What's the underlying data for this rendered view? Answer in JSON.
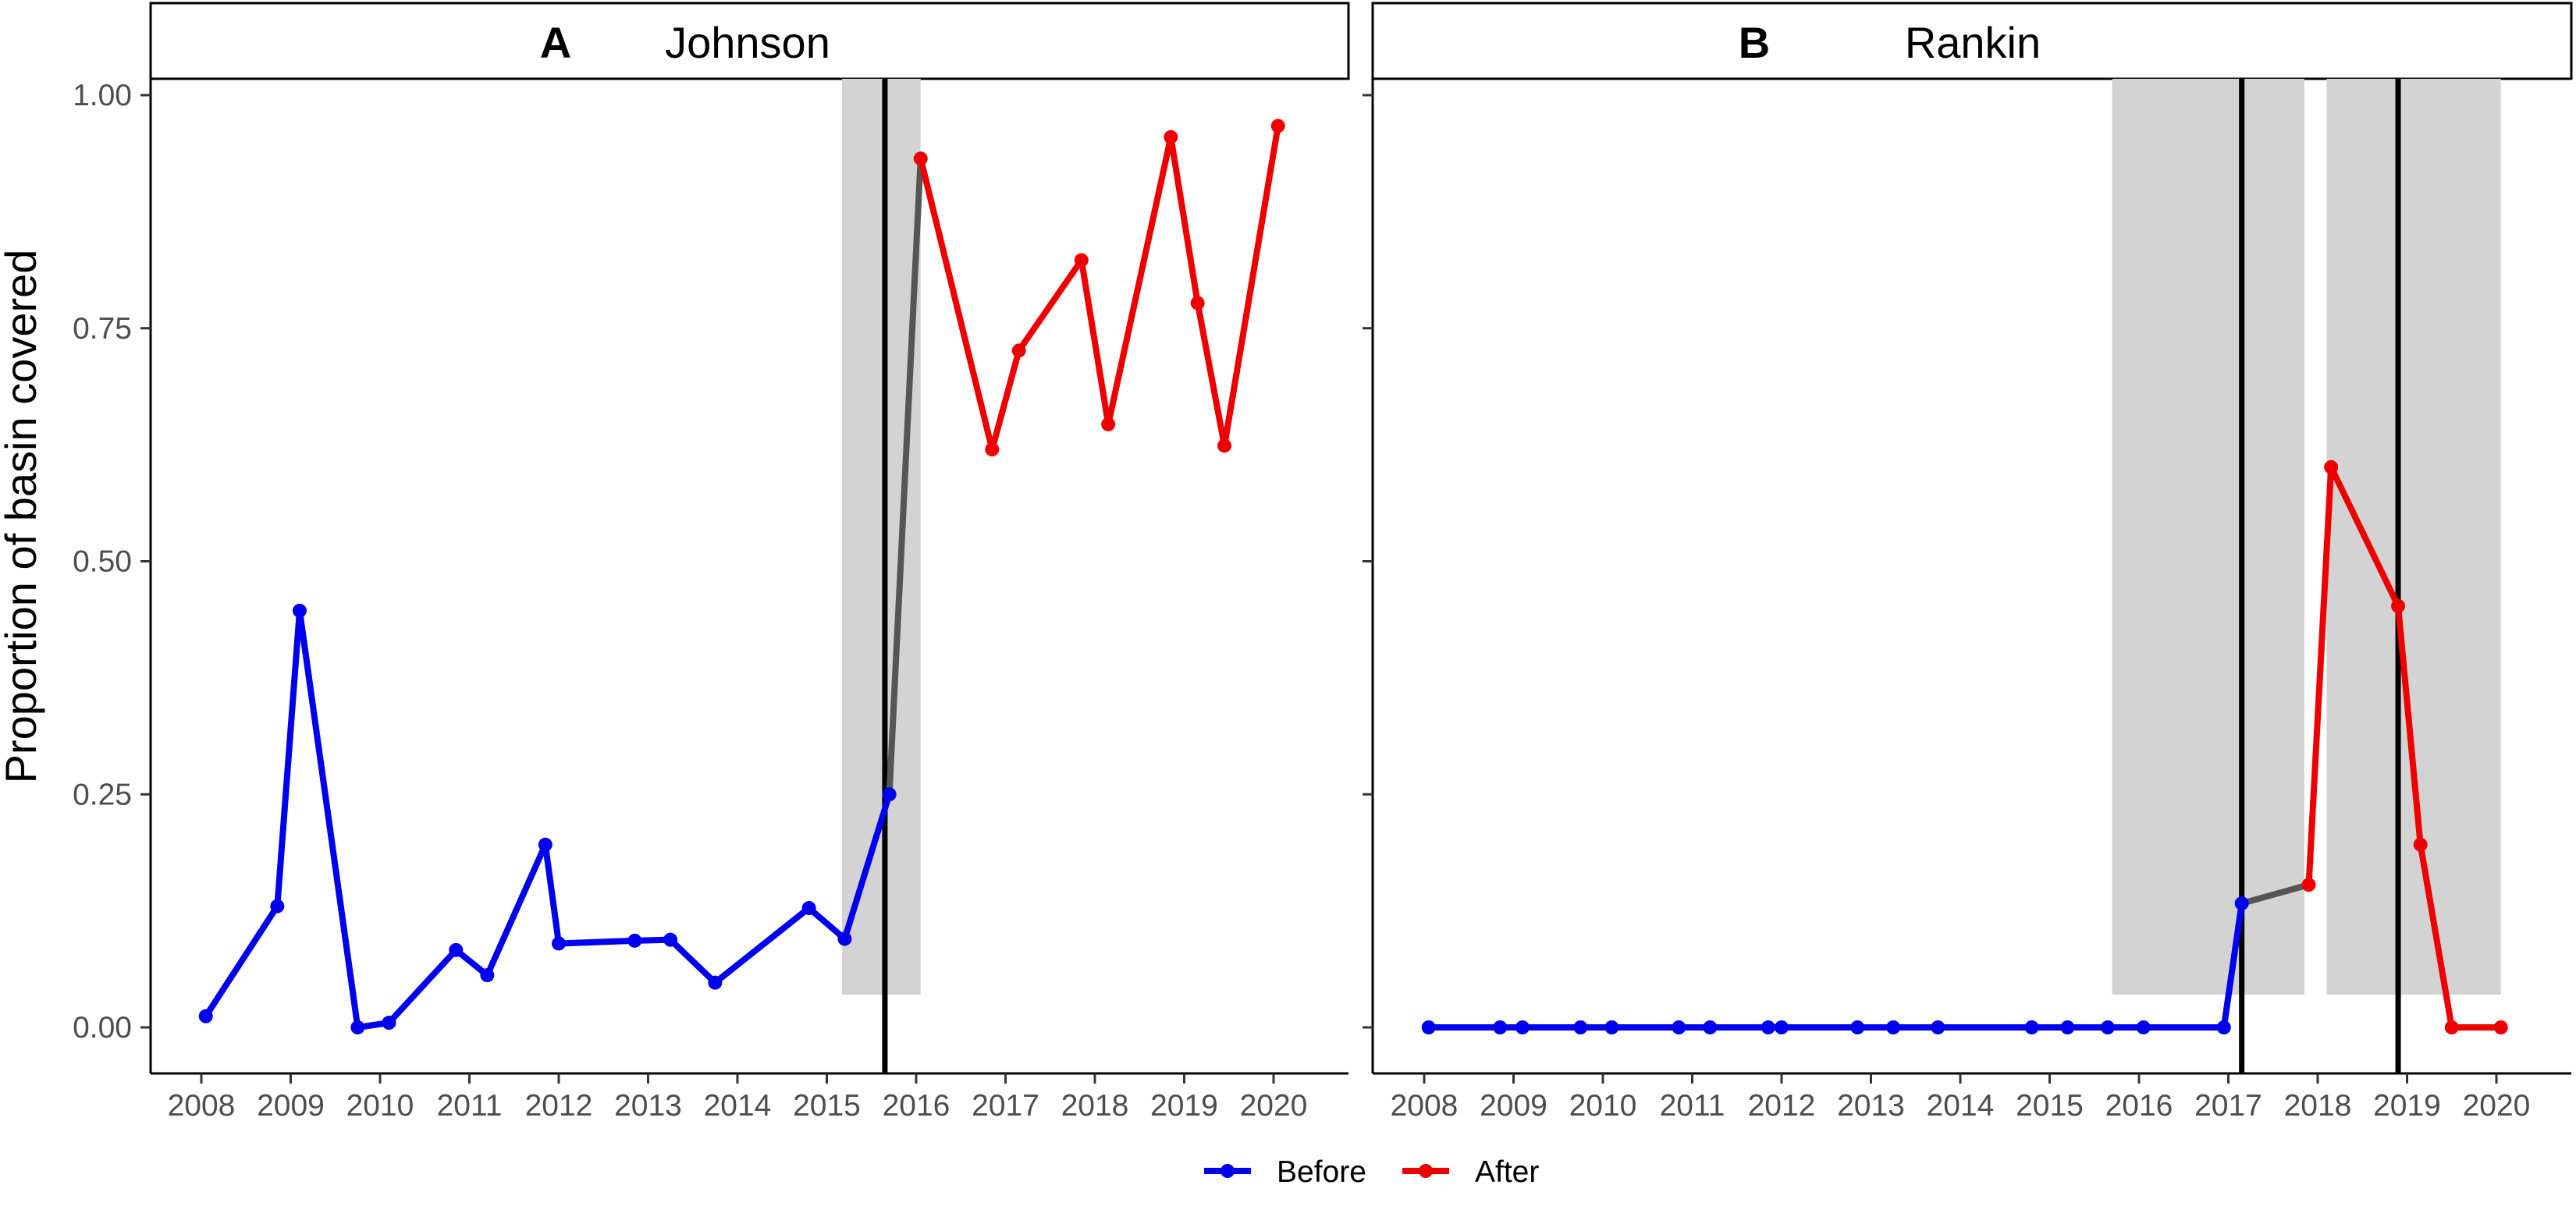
{
  "chart_data": {
    "type": "line",
    "ylabel": "Proportion of basin covered",
    "ylim": [
      0,
      1
    ],
    "y_ticks": [
      "0.00",
      "0.25",
      "0.50",
      "0.75",
      "1.00"
    ],
    "x_ticks": [
      "2008",
      "2009",
      "2010",
      "2011",
      "2012",
      "2013",
      "2014",
      "2015",
      "2016",
      "2017",
      "2018",
      "2019",
      "2020"
    ],
    "xlim": [
      2007.95,
      2020.3
    ],
    "grid": false,
    "legend_position": "bottom",
    "legend": [
      {
        "label": "Before",
        "color": "#0000ee"
      },
      {
        "label": "After",
        "color": "#ee0000"
      }
    ],
    "connector_color": "#555555",
    "shade_color": "#d3d3d3",
    "panels": [
      {
        "letter": "A",
        "name": "Johnson",
        "shaded_ranges": [
          [
            2015.17,
            2016.05
          ]
        ],
        "event_lines": [
          2015.65
        ],
        "before": {
          "x": [
            2008.05,
            2008.85,
            2009.1,
            2009.75,
            2010.1,
            2010.85,
            2011.2,
            2011.85,
            2012.0,
            2012.85,
            2013.25,
            2013.75,
            2014.8,
            2015.2,
            2015.7
          ],
          "y": [
            0.012,
            0.13,
            0.447,
            0.0,
            0.005,
            0.083,
            0.056,
            0.196,
            0.09,
            0.093,
            0.094,
            0.048,
            0.128,
            0.095,
            0.25
          ]
        },
        "after": {
          "x": [
            2016.05,
            2016.85,
            2017.15,
            2017.85,
            2018.15,
            2018.85,
            2019.15,
            2019.45,
            2020.05
          ],
          "y": [
            0.932,
            0.62,
            0.726,
            0.823,
            0.647,
            0.955,
            0.777,
            0.624,
            0.967
          ]
        }
      },
      {
        "letter": "B",
        "name": "Rankin",
        "shaded_ranges": [
          [
            2015.7,
            2017.85
          ],
          [
            2018.1,
            2020.05
          ]
        ],
        "event_lines": [
          2017.15,
          2018.9
        ],
        "before": {
          "x": [
            2008.05,
            2008.85,
            2009.1,
            2009.75,
            2010.1,
            2010.85,
            2011.2,
            2011.85,
            2012.0,
            2012.85,
            2013.25,
            2013.75,
            2014.8,
            2015.2,
            2015.65,
            2016.05,
            2016.95,
            2017.15
          ],
          "y": [
            0,
            0,
            0,
            0,
            0,
            0,
            0,
            0,
            0,
            0,
            0,
            0,
            0,
            0,
            0,
            0,
            0,
            0.133
          ]
        },
        "after": {
          "x": [
            2017.9,
            2018.15,
            2018.9,
            2019.15,
            2019.5,
            2020.05
          ],
          "y": [
            0.153,
            0.601,
            0.452,
            0.196,
            0.0,
            0.0
          ]
        }
      }
    ]
  }
}
